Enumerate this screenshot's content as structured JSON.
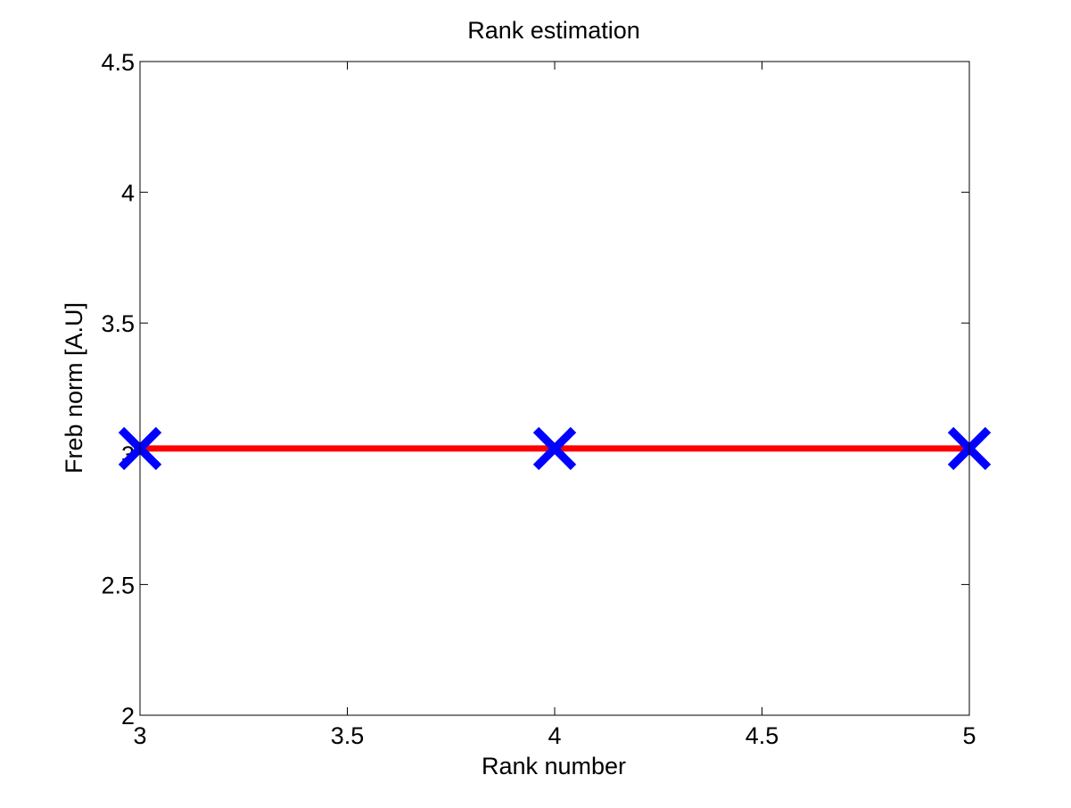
{
  "chart_data": {
    "type": "line",
    "title": "Rank estimation",
    "xlabel": "Rank number",
    "ylabel": "Freb norm [A.U]",
    "xlim": [
      3,
      5
    ],
    "ylim": [
      2,
      4.5
    ],
    "xticks": [
      "3",
      "3.5",
      "4",
      "4.5",
      "5"
    ],
    "yticks": [
      "2",
      "2.5",
      "3",
      "3.5",
      "4",
      "4.5"
    ],
    "xtick_values": [
      3,
      3.5,
      4,
      4.5,
      5
    ],
    "ytick_values": [
      2,
      2.5,
      3,
      3.5,
      4,
      4.5
    ],
    "grid": false,
    "series": [
      {
        "x": [
          3,
          4,
          5
        ],
        "y": [
          3.02,
          3.02,
          3.02
        ],
        "line_color": "#ff0000",
        "marker": "x",
        "marker_color": "#0000ff"
      }
    ]
  }
}
